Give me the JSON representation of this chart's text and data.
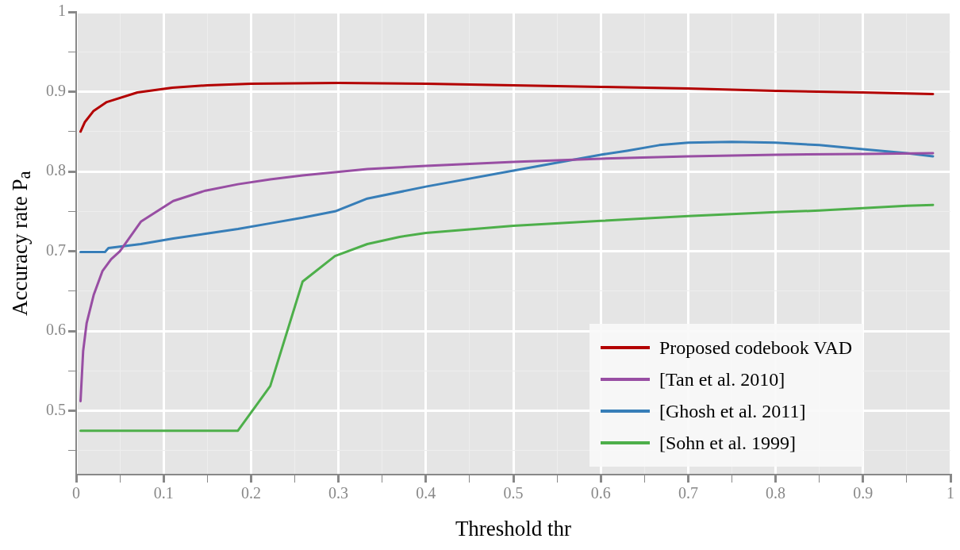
{
  "chart_data": {
    "type": "line",
    "xlabel": "Threshold thr",
    "ylabel": "Accuracy rate P$_{a}$",
    "xlim": [
      0,
      1
    ],
    "ylim": [
      0.42,
      1
    ],
    "xticks": [
      0,
      {
        "value": 0.05,
        "label": null
      },
      0.1,
      {
        "value": 0.15,
        "label": null
      },
      0.2,
      {
        "value": 0.25,
        "label": null
      },
      0.3,
      {
        "value": 0.35,
        "label": null
      },
      0.4,
      {
        "value": 0.45,
        "label": null
      },
      0.5,
      {
        "value": 0.55,
        "label": null
      },
      0.6,
      {
        "value": 0.65,
        "label": null
      },
      0.7,
      {
        "value": 0.75,
        "label": null
      },
      0.8,
      {
        "value": 0.85,
        "label": null
      },
      0.9,
      {
        "value": 0.95,
        "label": null
      },
      1
    ],
    "yticks": [
      {
        "value": 0.45,
        "label": null
      },
      0.5,
      {
        "value": 0.55,
        "label": null
      },
      0.6,
      {
        "value": 0.65,
        "label": null
      },
      0.7,
      {
        "value": 0.75,
        "label": null
      },
      0.8,
      {
        "value": 0.85,
        "label": null
      },
      0.9,
      {
        "value": 0.95,
        "label": null
      },
      1
    ],
    "grid": true,
    "legend": "bottom right",
    "line_style": "solid",
    "marker": "none",
    "series": [
      {
        "name": "Proposed codebook VAD",
        "color": "#b30000",
        "x": [
          0.005,
          0.01,
          0.02,
          0.035,
          0.07,
          0.11,
          0.15,
          0.2,
          0.3,
          0.4,
          0.5,
          0.6,
          0.7,
          0.8,
          0.9,
          0.98
        ],
        "values": [
          0.85,
          0.862,
          0.876,
          0.887,
          0.899,
          0.905,
          0.908,
          0.91,
          0.911,
          0.91,
          0.908,
          0.906,
          0.904,
          0.901,
          0.899,
          0.897
        ]
      },
      {
        "name": "[Tan et al. 2010]",
        "color": "#984ea3",
        "x": [
          0.005,
          0.008,
          0.012,
          0.02,
          0.03,
          0.04,
          0.05,
          0.074,
          0.111,
          0.148,
          0.185,
          0.222,
          0.259,
          0.296,
          0.333,
          0.4,
          0.5,
          0.6,
          0.7,
          0.8,
          0.9,
          0.98
        ],
        "values": [
          0.512,
          0.575,
          0.61,
          0.645,
          0.675,
          0.69,
          0.7,
          0.737,
          0.763,
          0.776,
          0.784,
          0.79,
          0.795,
          0.799,
          0.803,
          0.807,
          0.812,
          0.816,
          0.819,
          0.821,
          0.822,
          0.823
        ]
      },
      {
        "name": "[Ghosh et al. 2011]",
        "color": "#377eb8",
        "x": [
          0.005,
          0.033,
          0.037,
          0.074,
          0.111,
          0.148,
          0.185,
          0.222,
          0.259,
          0.296,
          0.333,
          0.4,
          0.5,
          0.6,
          0.63,
          0.667,
          0.7,
          0.75,
          0.8,
          0.85,
          0.9,
          0.95,
          0.98
        ],
        "values": [
          0.699,
          0.699,
          0.704,
          0.709,
          0.716,
          0.722,
          0.728,
          0.735,
          0.742,
          0.75,
          0.766,
          0.781,
          0.801,
          0.821,
          0.826,
          0.833,
          0.836,
          0.837,
          0.836,
          0.833,
          0.828,
          0.823,
          0.819
        ]
      },
      {
        "name": "[Sohn et al. 1999]",
        "color": "#4daf4a",
        "x": [
          0.005,
          0.185,
          0.222,
          0.259,
          0.296,
          0.333,
          0.37,
          0.4,
          0.5,
          0.6,
          0.7,
          0.8,
          0.85,
          0.9,
          0.95,
          0.98
        ],
        "values": [
          0.475,
          0.475,
          0.531,
          0.662,
          0.694,
          0.709,
          0.718,
          0.723,
          0.732,
          0.738,
          0.744,
          0.749,
          0.751,
          0.754,
          0.757,
          0.758
        ]
      }
    ]
  }
}
